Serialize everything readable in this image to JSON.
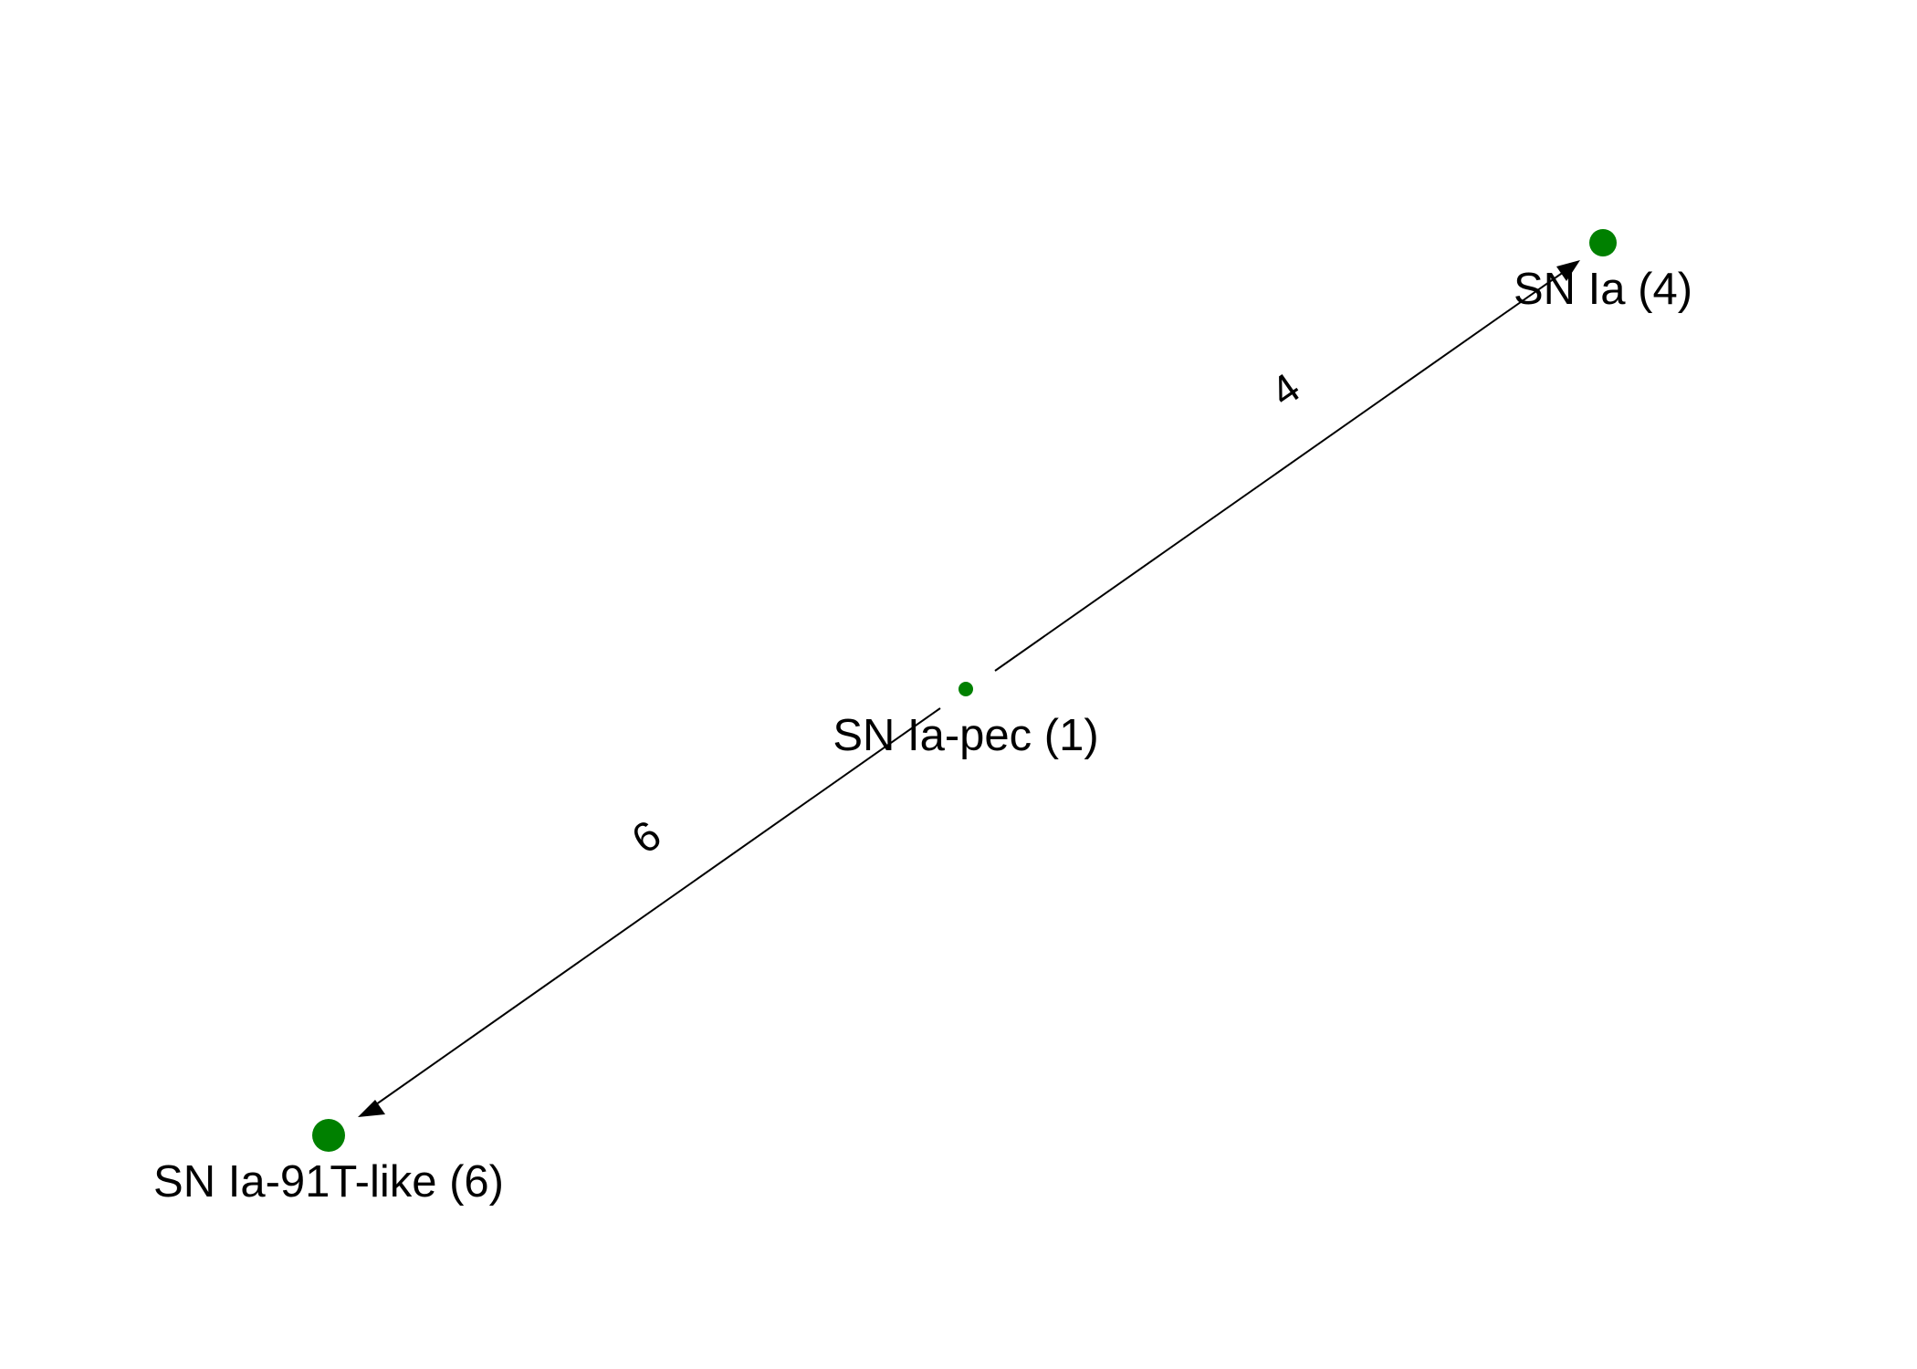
{
  "diagram": {
    "type": "directed-graph",
    "node_color": "#008000",
    "edge_color": "#000000",
    "nodes": [
      {
        "id": "sn-ia",
        "label": "SN Ia (4)",
        "weight": 4
      },
      {
        "id": "sn-ia-pec",
        "label": "SN Ia-pec (1)",
        "weight": 1
      },
      {
        "id": "sn-ia-91t-like",
        "label": "SN Ia-91T-like (6)",
        "weight": 6
      }
    ],
    "edges": [
      {
        "from": "sn-ia-pec",
        "to": "sn-ia",
        "label": "4"
      },
      {
        "from": "sn-ia-pec",
        "to": "sn-ia-91t-like",
        "label": "6"
      }
    ]
  }
}
